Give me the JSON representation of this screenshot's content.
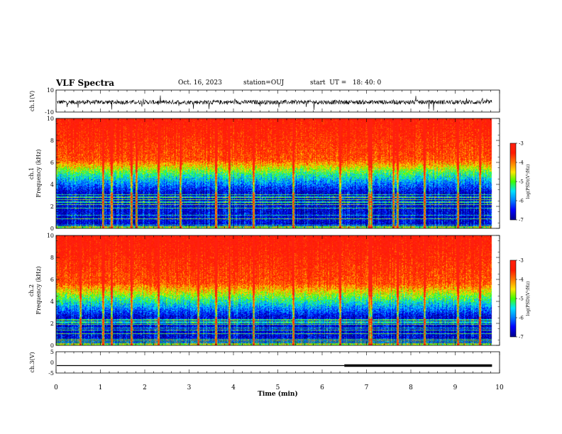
{
  "header": {
    "title": "VLF Spectra",
    "date": "Oct. 16, 2023",
    "station": "station=OUJ",
    "start_label": "start  UT =   18: 40: 0"
  },
  "chart_data": [
    {
      "type": "line",
      "name": "ch1-waveform",
      "ylabel": "ch.1(V)",
      "ylim": [
        -10,
        10
      ],
      "yticks": [
        "10",
        "-10"
      ],
      "xlim": [
        0,
        10
      ],
      "signal_end_min": 9.83,
      "baseline_v": -1.0,
      "noise_amplitude_v": 2.0,
      "spike_amplitude_v": 6.0
    },
    {
      "type": "heatmap",
      "name": "ch1-spectrogram",
      "ylabel": "ch.1\nFrequency  (kHz)",
      "ylabel_lines": [
        "ch.1",
        "Frequency  (kHz)"
      ],
      "ylim": [
        0,
        10
      ],
      "yticks": [
        0,
        2,
        4,
        6,
        8,
        10
      ],
      "xlim": [
        0,
        10
      ],
      "data_end_min": 9.83,
      "colorbar": {
        "range": [
          -7,
          -3
        ],
        "ticks": [
          "-3",
          "-4",
          "-5",
          "-6",
          "-7"
        ],
        "label": "log(PSD)(V²/Hz)"
      },
      "transition_khz": [
        3.3,
        5.0,
        6.2
      ],
      "sferic_times_min": [
        1.05,
        1.25,
        1.7,
        1.8,
        2.3,
        2.8,
        3.6,
        3.9,
        4.45,
        5.35,
        6.4,
        7.05,
        7.1,
        7.6,
        7.7,
        8.3,
        9.05,
        9.55
      ]
    },
    {
      "type": "heatmap",
      "name": "ch2-spectrogram",
      "ylabel": "ch.2\nFrequency  (kHz)",
      "ylabel_lines": [
        "ch.2",
        "Frequency  (kHz)"
      ],
      "ylim": [
        0,
        10
      ],
      "yticks": [
        0,
        2,
        4,
        6,
        8,
        10
      ],
      "xlim": [
        0,
        10
      ],
      "data_end_min": 9.83,
      "colorbar": {
        "range": [
          -7,
          -3
        ],
        "ticks": [
          "-3",
          "-4",
          "-5",
          "-6",
          "-7"
        ],
        "label": "log(PSD)(V²/Hz)"
      },
      "transition_khz": [
        2.6,
        4.2,
        5.6
      ],
      "sferic_times_min": [
        0.55,
        1.05,
        1.25,
        1.7,
        2.3,
        3.2,
        3.6,
        3.9,
        4.45,
        5.35,
        6.4,
        7.05,
        7.1,
        7.7,
        8.3,
        9.05,
        9.55
      ]
    },
    {
      "type": "line",
      "name": "ch3-level",
      "ylabel": "ch.3(V)",
      "ylim": [
        -5,
        5
      ],
      "yticks": [
        "5",
        "0",
        "-5"
      ],
      "xlim": [
        0,
        10
      ],
      "level_v": -1.5,
      "thin_until_min": 6.5,
      "thick_from_min": 6.5,
      "signal_end_min": 9.83
    }
  ],
  "x_axis": {
    "label": "Time  (min)",
    "ticks": [
      "0",
      "1",
      "2",
      "3",
      "4",
      "5",
      "6",
      "7",
      "8",
      "9",
      "10"
    ]
  },
  "colors": {
    "cmap": [
      "#00008f",
      "#0000ff",
      "#0080ff",
      "#00e5ff",
      "#3dff00",
      "#ffe600",
      "#ff7a00",
      "#ff1a00",
      "#ff2010"
    ]
  }
}
